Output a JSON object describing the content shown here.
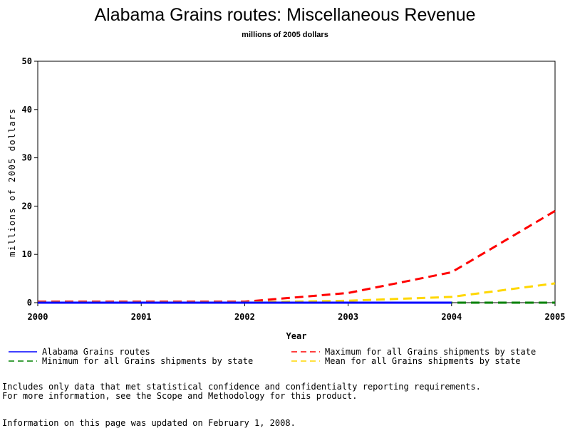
{
  "chart_data": {
    "type": "line",
    "title": "Alabama Grains routes: Miscellaneous Revenue",
    "subtitle": "millions of 2005 dollars",
    "xlabel": "Year",
    "ylabel": "millions of 2005 dollars",
    "x": [
      2000,
      2001,
      2002,
      2003,
      2004,
      2005
    ],
    "x_ticks": [
      "2000",
      "2001",
      "2002",
      "2003",
      "2004",
      "2005"
    ],
    "xlim": [
      2000,
      2005
    ],
    "y_ticks": [
      "0",
      "10",
      "20",
      "30",
      "40",
      "50"
    ],
    "ylim": [
      0,
      50
    ],
    "grid": false,
    "legend_position": "bottom",
    "series": [
      {
        "name": "Alabama Grains routes",
        "color": "#0000ff",
        "dash": "solid",
        "x": [
          2000,
          2001,
          2002,
          2003,
          2004
        ],
        "values": [
          0,
          0,
          0,
          0,
          0
        ]
      },
      {
        "name": "Maximum for all Grains shipments by state",
        "color": "#ff0000",
        "dash": "dashed",
        "x": [
          2000,
          2001,
          2002,
          2003,
          2004,
          2005
        ],
        "values": [
          0.2,
          0.2,
          0.2,
          2.0,
          6.3,
          19.0
        ]
      },
      {
        "name": "Minimum for all Grains shipments by state",
        "color": "#008000",
        "dash": "dashed",
        "x": [
          2000,
          2001,
          2002,
          2003,
          2004,
          2005
        ],
        "values": [
          0,
          0,
          0,
          0,
          0,
          0
        ]
      },
      {
        "name": "Mean for all Grains shipments by state",
        "color": "#ffd700",
        "dash": "dashed",
        "x": [
          2000,
          2001,
          2002,
          2003,
          2004,
          2005
        ],
        "values": [
          0.05,
          0.05,
          0.05,
          0.4,
          1.2,
          4.0
        ]
      }
    ]
  },
  "footnotes": {
    "line1": "Includes only data that met statistical confidence and confidentialty reporting requirements.",
    "line2": "For more information, see the Scope and Methodology for this product.",
    "updated": "Information on this page was updated on February 1, 2008."
  }
}
